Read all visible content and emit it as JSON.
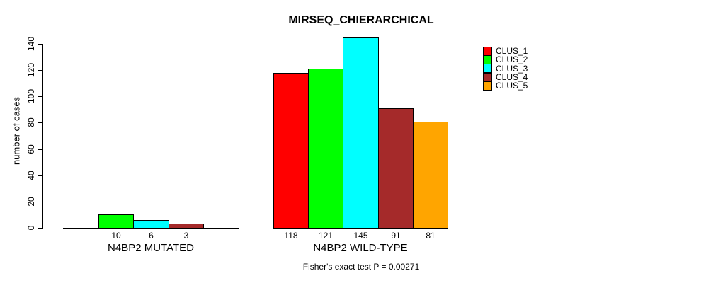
{
  "chart_data": {
    "type": "bar",
    "title": "MIRSEQ_CHIERARCHICAL",
    "ylabel": "number of cases",
    "xlabel": "",
    "ylim": [
      0,
      140
    ],
    "yticks": [
      0,
      20,
      40,
      60,
      80,
      100,
      120,
      140
    ],
    "grid": false,
    "legend_position": "right",
    "series_names": [
      "CLUS_1",
      "CLUS_2",
      "CLUS_3",
      "CLUS_4",
      "CLUS_5"
    ],
    "series_colors": [
      "#FF0000",
      "#00FF00",
      "#00FFFF",
      "#A52A2A",
      "#FFA500"
    ],
    "legend": [
      {
        "label": "CLUS_1",
        "color": "#FF0000"
      },
      {
        "label": "CLUS_2",
        "color": "#00FF00"
      },
      {
        "label": "CLUS_3",
        "color": "#00FFFF"
      },
      {
        "label": "CLUS_4",
        "color": "#A52A2A"
      },
      {
        "label": "CLUS_5",
        "color": "#FFA500"
      }
    ],
    "groups": [
      {
        "label": "N4BP2 MUTATED",
        "values": [
          0,
          10,
          6,
          3,
          0
        ],
        "bar_labels": [
          "",
          "10",
          "6",
          "3",
          ""
        ]
      },
      {
        "label": "N4BP2 WILD-TYPE",
        "values": [
          118,
          121,
          145,
          91,
          81
        ],
        "bar_labels": [
          "118",
          "121",
          "145",
          "91",
          "81"
        ]
      }
    ],
    "annotation": "Fisher's exact test P = 0.00271"
  }
}
